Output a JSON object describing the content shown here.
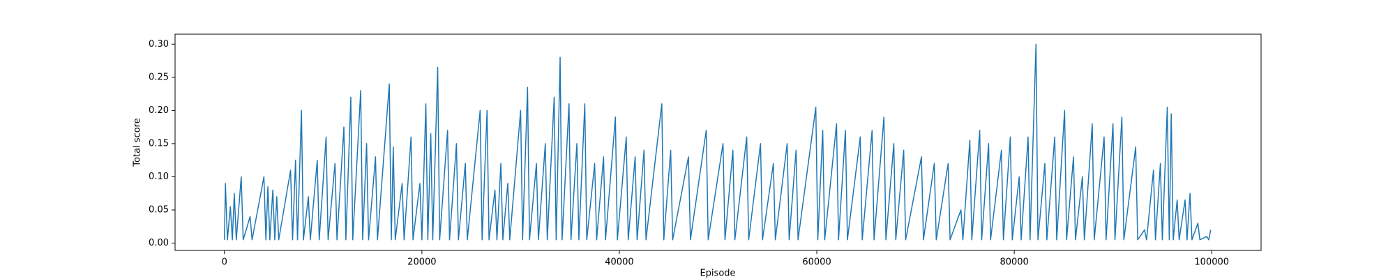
{
  "chart_data": {
    "type": "line",
    "xlabel": "Episode",
    "ylabel": "Total score",
    "x": [
      0,
      100,
      300,
      600,
      800,
      1000,
      1200,
      1700,
      1900,
      2600,
      2800,
      4000,
      4200,
      4400,
      4600,
      4900,
      5100,
      5300,
      5500,
      6700,
      6900,
      7200,
      7400,
      7800,
      8000,
      8500,
      8700,
      9400,
      9600,
      10300,
      10500,
      11200,
      11400,
      12100,
      12300,
      12800,
      13000,
      13800,
      14000,
      14400,
      14600,
      15300,
      15500,
      16700,
      16900,
      17100,
      17300,
      18000,
      18200,
      18900,
      19100,
      19800,
      20000,
      20400,
      20600,
      20900,
      21100,
      21600,
      21800,
      22600,
      22800,
      23500,
      23700,
      24400,
      24600,
      25900,
      26100,
      26600,
      26800,
      27400,
      27600,
      28000,
      28200,
      28700,
      28900,
      30000,
      30200,
      30700,
      30900,
      31600,
      31800,
      32500,
      32700,
      33400,
      33600,
      34000,
      34200,
      34900,
      35100,
      35700,
      35900,
      36500,
      36700,
      37500,
      37700,
      38400,
      38600,
      39600,
      39800,
      40700,
      40900,
      41600,
      41800,
      42500,
      42700,
      44300,
      44500,
      45200,
      45400,
      47000,
      47200,
      48800,
      49000,
      50500,
      50700,
      51500,
      51700,
      52900,
      53100,
      54300,
      54500,
      55600,
      55800,
      57000,
      57200,
      57900,
      58100,
      59900,
      60100,
      60600,
      60800,
      62000,
      62200,
      62900,
      63100,
      64400,
      64600,
      65600,
      65800,
      66800,
      67000,
      67800,
      68000,
      68800,
      69000,
      70600,
      70800,
      71900,
      72100,
      73300,
      73500,
      74600,
      74800,
      75500,
      75700,
      76500,
      76700,
      77400,
      77600,
      78700,
      78900,
      79600,
      79800,
      80500,
      80700,
      81400,
      81600,
      82200,
      82400,
      83100,
      83300,
      84100,
      84300,
      85100,
      85300,
      86000,
      86200,
      86900,
      87100,
      87900,
      88100,
      89100,
      89300,
      90000,
      90200,
      90900,
      91100,
      92300,
      92500,
      93200,
      93400,
      94100,
      94300,
      94800,
      95000,
      95500,
      95700,
      95900,
      96100,
      96500,
      96700,
      97300,
      97500,
      97800,
      98000,
      98600,
      98800,
      99500,
      99700,
      99900
    ],
    "series": [
      {
        "name": "Total score",
        "color": "#1f77b4",
        "values": [
          0.005,
          0.09,
          0.005,
          0.055,
          0.005,
          0.075,
          0.005,
          0.1,
          0.005,
          0.04,
          0.005,
          0.1,
          0.005,
          0.085,
          0.005,
          0.08,
          0.005,
          0.07,
          0.005,
          0.11,
          0.005,
          0.125,
          0.005,
          0.2,
          0.005,
          0.07,
          0.005,
          0.125,
          0.005,
          0.16,
          0.005,
          0.12,
          0.005,
          0.175,
          0.005,
          0.22,
          0.005,
          0.23,
          0.005,
          0.15,
          0.005,
          0.13,
          0.005,
          0.24,
          0.005,
          0.145,
          0.005,
          0.09,
          0.005,
          0.16,
          0.005,
          0.09,
          0.005,
          0.21,
          0.005,
          0.165,
          0.005,
          0.265,
          0.005,
          0.17,
          0.005,
          0.15,
          0.005,
          0.12,
          0.005,
          0.2,
          0.005,
          0.2,
          0.005,
          0.08,
          0.005,
          0.12,
          0.005,
          0.09,
          0.005,
          0.2,
          0.005,
          0.235,
          0.005,
          0.12,
          0.005,
          0.15,
          0.005,
          0.22,
          0.005,
          0.28,
          0.005,
          0.21,
          0.005,
          0.15,
          0.005,
          0.21,
          0.005,
          0.12,
          0.005,
          0.13,
          0.005,
          0.19,
          0.005,
          0.16,
          0.005,
          0.13,
          0.005,
          0.14,
          0.005,
          0.21,
          0.005,
          0.14,
          0.005,
          0.13,
          0.005,
          0.17,
          0.005,
          0.15,
          0.005,
          0.14,
          0.005,
          0.16,
          0.005,
          0.15,
          0.005,
          0.12,
          0.005,
          0.15,
          0.005,
          0.14,
          0.005,
          0.205,
          0.005,
          0.17,
          0.005,
          0.18,
          0.005,
          0.17,
          0.005,
          0.16,
          0.005,
          0.17,
          0.005,
          0.19,
          0.005,
          0.15,
          0.005,
          0.14,
          0.005,
          0.13,
          0.005,
          0.12,
          0.005,
          0.12,
          0.005,
          0.05,
          0.005,
          0.155,
          0.005,
          0.17,
          0.005,
          0.15,
          0.005,
          0.14,
          0.005,
          0.16,
          0.005,
          0.1,
          0.005,
          0.16,
          0.005,
          0.3,
          0.005,
          0.12,
          0.005,
          0.16,
          0.005,
          0.2,
          0.005,
          0.13,
          0.005,
          0.1,
          0.005,
          0.18,
          0.005,
          0.16,
          0.005,
          0.18,
          0.005,
          0.19,
          0.005,
          0.145,
          0.005,
          0.02,
          0.005,
          0.11,
          0.005,
          0.12,
          0.005,
          0.205,
          0.005,
          0.195,
          0.005,
          0.065,
          0.005,
          0.065,
          0.005,
          0.075,
          0.005,
          0.03,
          0.005,
          0.01,
          0.005,
          0.02
        ]
      }
    ],
    "xlim": [
      -5000,
      105000
    ],
    "xticks": [
      0,
      20000,
      40000,
      60000,
      80000,
      100000
    ],
    "ylim": [
      -0.011,
      0.315
    ],
    "yticks": [
      {
        "value": 0,
        "label": "0.00"
      },
      {
        "value": 0.05,
        "label": "0.05"
      },
      {
        "value": 0.1,
        "label": "0.10"
      },
      {
        "value": 0.15,
        "label": "0.15"
      },
      {
        "value": 0.2,
        "label": "0.20"
      },
      {
        "value": 0.25,
        "label": "0.25"
      },
      {
        "value": 0.3,
        "label": "0.30"
      }
    ],
    "grid": false
  }
}
